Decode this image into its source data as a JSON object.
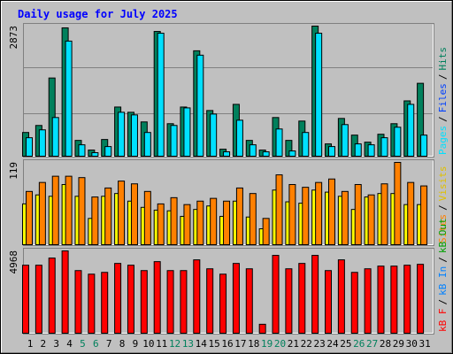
{
  "chart_data": [
    {
      "type": "bar",
      "title": "Daily usage for July 2025",
      "ylim": [
        0,
        2873
      ],
      "yticks": [
        2873
      ],
      "series": [
        {
          "color": "#00805c",
          "values": [
            524,
            679,
            1727,
            2834,
            349,
            136,
            369,
            1086,
            970,
            757,
            2755,
            718,
            1086,
            2328,
            1009,
            155,
            1145,
            349,
            136,
            854,
            349,
            776,
            2873,
            272,
            834,
            466,
            310,
            485,
            718,
            1222,
            1610
          ]
        },
        {
          "color": "#00e0ff",
          "values": [
            408,
            582,
            854,
            2542,
            252,
            78,
            213,
            970,
            912,
            524,
            2716,
            679,
            1067,
            2231,
            931,
            97,
            795,
            252,
            97,
            601,
            116,
            524,
            2716,
            213,
            698,
            272,
            252,
            408,
            640,
            1145,
            466
          ]
        }
      ],
      "legend": [
        {
          "text": "Pages",
          "color": "#00e0ff"
        },
        {
          "text": "Files",
          "color": "#0040ff"
        },
        {
          "text": "Hits",
          "color": "#00805c"
        }
      ],
      "legend_separator": "/"
    },
    {
      "type": "bar",
      "ylim": [
        0,
        119
      ],
      "yticks": [
        119
      ],
      "series": [
        {
          "color": "#ffff00",
          "values": [
            59,
            72,
            70,
            87,
            70,
            38,
            70,
            74,
            63,
            54,
            50,
            49,
            41,
            51,
            56,
            41,
            63,
            40,
            23,
            79,
            62,
            60,
            79,
            76,
            70,
            51,
            69,
            74,
            74,
            58,
            58
          ]
        },
        {
          "color": "#ff8000",
          "values": [
            77,
            90,
            99,
            99,
            97,
            69,
            82,
            92,
            88,
            77,
            59,
            68,
            58,
            63,
            67,
            63,
            82,
            74,
            38,
            101,
            87,
            83,
            90,
            95,
            77,
            87,
            72,
            88,
            119,
            90,
            85
          ]
        }
      ],
      "legend": [
        {
          "text": "Sites",
          "color": "#ff8000"
        },
        {
          "text": "Visits",
          "color": "#e0c000"
        }
      ],
      "legend_separator": "/"
    },
    {
      "type": "bar",
      "ylim": [
        0,
        4968
      ],
      "yticks": [
        4968
      ],
      "series": [
        {
          "color": "#ff0000",
          "values": [
            4104,
            4104,
            4536,
            4968,
            3780,
            3564,
            3672,
            4212,
            4104,
            3780,
            4320,
            3780,
            3780,
            4428,
            3888,
            3564,
            4212,
            3888,
            540,
            4698,
            3888,
            4212,
            4698,
            3780,
            4428,
            3672,
            3888,
            4050,
            4050,
            4104,
            4158
          ]
        }
      ],
      "legend": [
        {
          "text": "kB F",
          "color": "#ff0000"
        },
        {
          "text": "kB In",
          "color": "#0080ff"
        },
        {
          "text": "kB Out",
          "color": "#00a000"
        }
      ],
      "legend_separator": "/",
      "categories": [
        "1",
        "2",
        "3",
        "4",
        "5",
        "6",
        "7",
        "8",
        "9",
        "10",
        "11",
        "12",
        "13",
        "14",
        "15",
        "16",
        "17",
        "18",
        "19",
        "20",
        "21",
        "22",
        "23",
        "24",
        "25",
        "26",
        "27",
        "28",
        "29",
        "30",
        "31"
      ],
      "category_colors": [
        "#000000",
        "#000000",
        "#000000",
        "#000000",
        "#00805c",
        "#00805c",
        "#000000",
        "#000000",
        "#000000",
        "#000000",
        "#000000",
        "#00805c",
        "#00805c",
        "#000000",
        "#000000",
        "#000000",
        "#000000",
        "#000000",
        "#00805c",
        "#00805c",
        "#000000",
        "#000000",
        "#000000",
        "#000000",
        "#000000",
        "#00805c",
        "#00805c",
        "#000000",
        "#000000",
        "#000000",
        "#000000"
      ]
    }
  ]
}
